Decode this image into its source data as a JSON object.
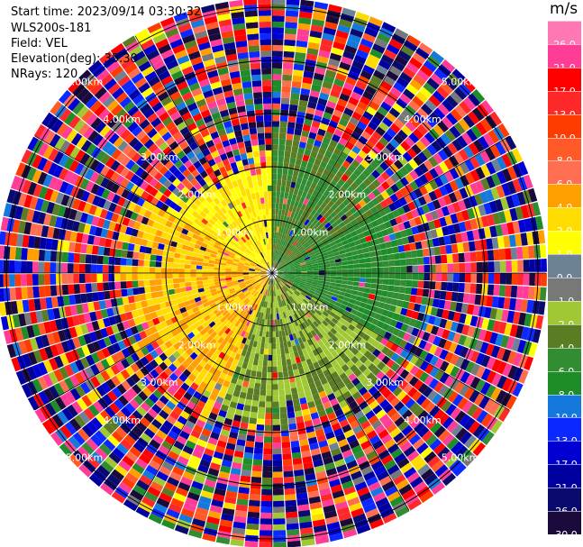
{
  "info": {
    "start_time": "Start time: 2023/09/14 03:30:32",
    "site": "WLS200s-181",
    "field": "Field: VEL",
    "elevation": "Elevation(deg): 35.30",
    "nrays": "NRays: 120"
  },
  "colorbar": {
    "unit": "m/s",
    "colors": [
      "#1a0a3c",
      "#0a0a6e",
      "#0000a0",
      "#0000d2",
      "#0a28ff",
      "#1478dc",
      "#1e8c28",
      "#328c32",
      "#5a7d23",
      "#a0c832",
      "#787878",
      "#6e8296",
      "#ffff00",
      "#ffdc00",
      "#ffa000",
      "#ff6e50",
      "#ff5a28",
      "#ff3c00",
      "#ff2828",
      "#ff0000",
      "#ff3c96",
      "#ff78b4"
    ],
    "labels": [
      "-30.0",
      "-26.0",
      "-21.0",
      "-17.0",
      "-13.0",
      "-10.0",
      "-8.0",
      "-6.0",
      "-4.0",
      "-2.0",
      "-1.0",
      "0.0",
      "1.0",
      "2.0",
      "4.0",
      "6.0",
      "8.0",
      "10.0",
      "13.0",
      "17.0",
      "21.0",
      "26.0"
    ]
  },
  "chart_data": {
    "type": "heatmap",
    "projection": "polar PPI",
    "field": "VEL",
    "units": "m/s",
    "nrays": 120,
    "range_rings_km": [
      1.0,
      2.0,
      3.0,
      4.0,
      5.0
    ],
    "ring_labels": [
      "1.00km",
      "2.00km",
      "3.00km",
      "4.00km",
      "5.00km"
    ],
    "velocity_sectors": [
      {
        "azimuth_deg": [
          300,
          360
        ],
        "range_km": [
          0,
          2.0
        ],
        "dominant_velocity": 2.0
      },
      {
        "azimuth_deg": [
          0,
          60
        ],
        "range_km": [
          0,
          2.5
        ],
        "dominant_velocity": -4.0
      },
      {
        "azimuth_deg": [
          60,
          120
        ],
        "range_km": [
          0,
          2.5
        ],
        "dominant_velocity": -6.0
      },
      {
        "azimuth_deg": [
          120,
          200
        ],
        "range_km": [
          0,
          2.5
        ],
        "dominant_velocity": -2.0
      },
      {
        "azimuth_deg": [
          200,
          300
        ],
        "range_km": [
          0,
          2.5
        ],
        "dominant_velocity": 4.0
      }
    ],
    "far_range_note": "noise beyond ~2.5 km"
  }
}
